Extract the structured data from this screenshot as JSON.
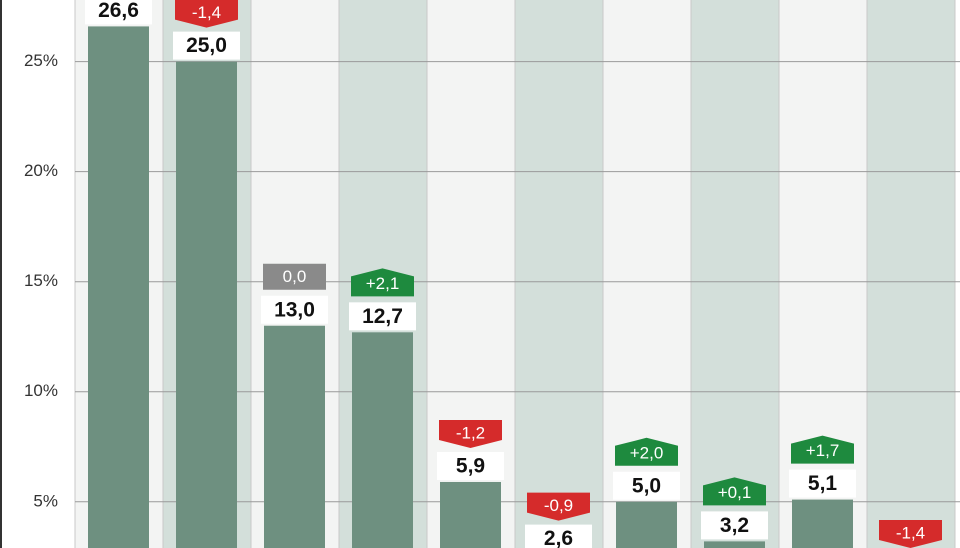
{
  "chart_data": {
    "type": "bar",
    "values": [
      26.6,
      25.0,
      13.0,
      12.7,
      5.9,
      2.6,
      5.0,
      3.2,
      5.1,
      null
    ],
    "value_labels": [
      "26,6",
      "25,0",
      "13,0",
      "12,7",
      "5,9",
      "2,6",
      "5,0",
      "3,2",
      "5,1",
      null
    ],
    "changes": [
      null,
      -1.4,
      0.0,
      2.1,
      -1.2,
      -0.9,
      2.0,
      0.1,
      1.7,
      -1.4
    ],
    "change_labels": [
      null,
      "-1,4",
      "0,0",
      "+2,1",
      "-1,2",
      "-0,9",
      "+2,0",
      "+0,1",
      "+1,7",
      "-1,4"
    ],
    "color": "#6e9080",
    "up_color": "#1e8a3e",
    "down_color": "#d52b2b",
    "flat_color": "#8a8a8a",
    "ylim": [
      2.9,
      27.8
    ],
    "yticks": [
      {
        "value": 5,
        "label": "5%"
      },
      {
        "value": 10,
        "label": "10%"
      },
      {
        "value": 15,
        "label": "15%"
      },
      {
        "value": 20,
        "label": "20%"
      },
      {
        "value": 25,
        "label": "25%"
      }
    ],
    "grid": true
  }
}
